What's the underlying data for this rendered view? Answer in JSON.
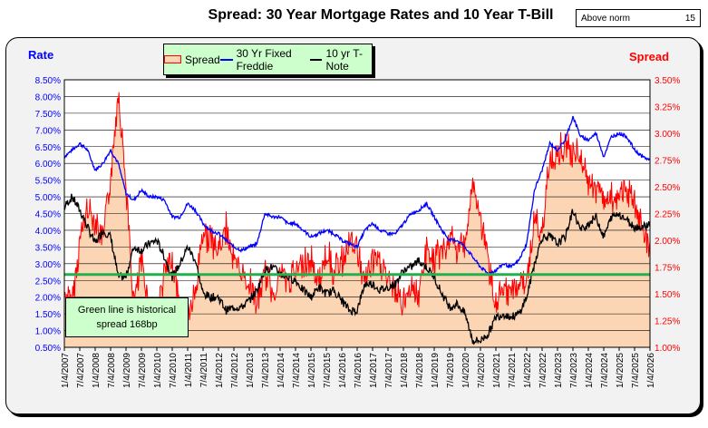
{
  "chart_data": {
    "type": "line",
    "title": "Spread:  30 Year Mortgage Rates and 10 Year T-Bill",
    "left_axis": {
      "label": "Rate",
      "ylim": [
        0.5,
        8.5
      ],
      "ticks": [
        "0.50%",
        "1.00%",
        "1.50%",
        "2.00%",
        "2.50%",
        "3.00%",
        "3.50%",
        "4.00%",
        "4.50%",
        "5.00%",
        "5.50%",
        "6.00%",
        "6.50%",
        "7.00%",
        "7.50%",
        "8.00%",
        "8.50%"
      ]
    },
    "right_axis": {
      "label": "Spread",
      "ylim": [
        1.0,
        3.5
      ],
      "ticks": [
        "1.00%",
        "1.25%",
        "1.50%",
        "1.75%",
        "2.00%",
        "2.25%",
        "2.50%",
        "2.75%",
        "3.00%",
        "3.25%",
        "3.50%"
      ]
    },
    "x_ticks": [
      "1/4/2007",
      "7/4/2007",
      "1/4/2008",
      "7/4/2008",
      "1/4/2009",
      "7/4/2009",
      "1/4/2010",
      "7/4/2010",
      "1/4/2011",
      "7/4/2011",
      "1/4/2012",
      "7/4/2012",
      "1/4/2013",
      "7/4/2013",
      "1/4/2014",
      "7/4/2014",
      "1/4/2015",
      "7/4/2015",
      "1/4/2016",
      "7/4/2016",
      "1/4/2017",
      "7/4/2017",
      "1/4/2018",
      "7/4/2018",
      "1/4/2019",
      "7/4/2019",
      "1/4/2020",
      "7/4/2020",
      "1/4/2021",
      "7/4/2021",
      "1/4/2022",
      "7/4/2022",
      "1/4/2023",
      "7/4/2023",
      "1/4/2024",
      "7/4/2024",
      "1/4/2025",
      "7/4/2025",
      "1/4/2026"
    ],
    "x_start": 2007,
    "x_step": 0.25,
    "series": [
      {
        "name": "30 Yr Fixed Freddie",
        "axis": "left",
        "color": "#0000ff",
        "values": [
          6.2,
          6.4,
          6.6,
          6.4,
          5.8,
          6.0,
          6.4,
          6.0,
          5.1,
          4.9,
          5.2,
          5.0,
          5.0,
          4.9,
          4.4,
          4.4,
          4.8,
          4.6,
          4.2,
          4.0,
          3.9,
          3.7,
          3.5,
          3.4,
          3.5,
          3.6,
          4.5,
          4.4,
          4.4,
          4.2,
          4.2,
          4.0,
          3.8,
          3.9,
          4.0,
          3.9,
          3.7,
          3.6,
          3.5,
          4.0,
          4.2,
          4.0,
          3.9,
          3.9,
          4.2,
          4.5,
          4.6,
          4.8,
          4.4,
          4.0,
          3.7,
          3.7,
          3.5,
          3.2,
          2.9,
          2.7,
          2.8,
          3.0,
          2.9,
          3.1,
          3.6,
          5.2,
          5.8,
          6.6,
          6.4,
          6.7,
          7.4,
          6.8,
          6.7,
          6.9,
          6.2,
          6.8,
          6.9,
          6.8,
          6.4,
          6.2,
          6.1
        ]
      },
      {
        "name": "10 yr T-Note",
        "axis": "left",
        "color": "#000000",
        "values": [
          4.7,
          5.0,
          4.6,
          4.1,
          3.6,
          4.0,
          3.8,
          2.6,
          2.6,
          3.5,
          3.4,
          3.6,
          3.7,
          3.2,
          2.6,
          3.0,
          3.5,
          3.1,
          2.1,
          2.0,
          2.0,
          1.6,
          1.7,
          1.7,
          1.9,
          2.2,
          2.8,
          2.9,
          2.7,
          2.6,
          2.5,
          2.2,
          2.0,
          2.3,
          2.1,
          2.2,
          1.9,
          1.6,
          1.6,
          2.4,
          2.4,
          2.2,
          2.3,
          2.4,
          2.8,
          2.9,
          3.1,
          2.9,
          2.6,
          2.1,
          1.7,
          1.8,
          1.5,
          0.7,
          0.7,
          0.9,
          1.4,
          1.5,
          1.4,
          1.5,
          2.0,
          3.0,
          3.8,
          3.8,
          3.6,
          3.8,
          4.6,
          4.0,
          4.2,
          4.4,
          3.8,
          4.4,
          4.5,
          4.3,
          4.1,
          4.1,
          4.2
        ]
      },
      {
        "name": "Spread",
        "axis": "right",
        "type": "area",
        "color": "#ff0000",
        "fill": "#fcd5b4",
        "derived": "30 Yr Fixed Freddie minus 10 yr T-Note"
      }
    ],
    "reference_line": {
      "value": 1.68,
      "axis": "right",
      "color": "#22b14c"
    },
    "annotation": [
      "Green line is historical",
      "spread 168bp"
    ],
    "legend": [
      "Spread",
      "30 Yr Fixed Freddie",
      "10 yr T-Note"
    ],
    "legend_position": "top-center"
  },
  "above_norm": {
    "label": "Above norm",
    "value": "15"
  }
}
